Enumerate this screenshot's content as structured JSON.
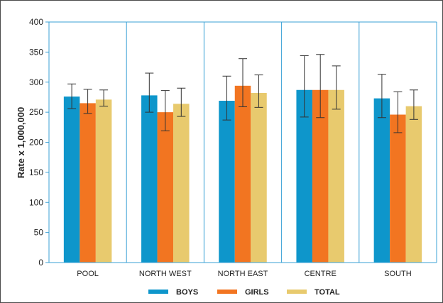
{
  "chart_data": {
    "type": "bar",
    "title": "",
    "xlabel": "",
    "ylabel": "Rate x 1,000,000",
    "ylim": [
      0,
      400
    ],
    "yticks": [
      0,
      50,
      100,
      150,
      200,
      250,
      300,
      350,
      400
    ],
    "grid": "vertical lines between categories",
    "legend": "bottom",
    "categories": [
      "POOL",
      "NORTH WEST",
      "NORTH EAST",
      "CENTRE",
      "SOUTH"
    ],
    "series": [
      {
        "name": "BOYS",
        "color": "#0e96cb",
        "values": [
          276,
          278,
          269,
          287,
          273
        ],
        "error_low": [
          256,
          250,
          237,
          242,
          241
        ],
        "error_high": [
          297,
          315,
          310,
          344,
          313
        ]
      },
      {
        "name": "GIRLS",
        "color": "#f27521",
        "values": [
          265,
          250,
          294,
          287,
          246
        ],
        "error_low": [
          248,
          219,
          259,
          241,
          216
        ],
        "error_high": [
          288,
          286,
          339,
          346,
          284
        ]
      },
      {
        "name": "TOTAL",
        "color": "#e8ca6e",
        "values": [
          271,
          264,
          282,
          287,
          260
        ],
        "error_low": [
          260,
          243,
          258,
          255,
          238
        ],
        "error_high": [
          287,
          290,
          312,
          327,
          287
        ]
      }
    ]
  }
}
